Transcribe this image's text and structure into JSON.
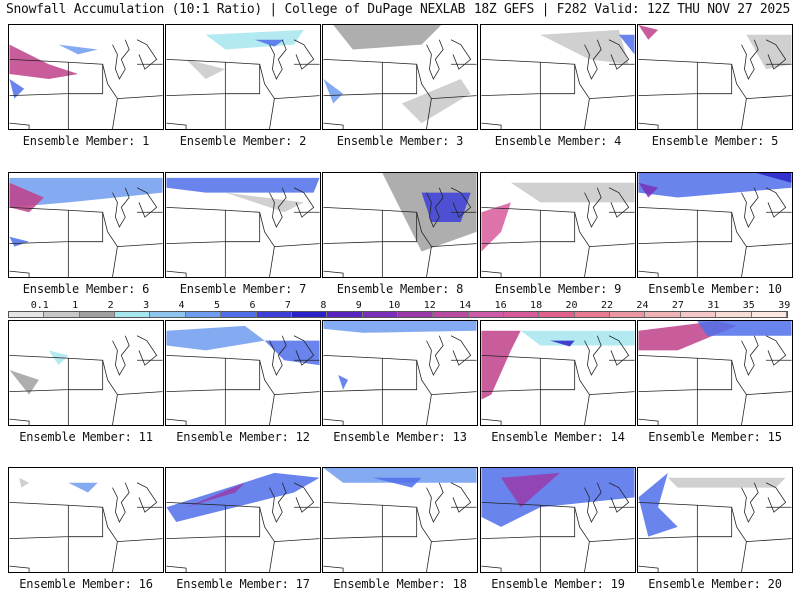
{
  "header": {
    "title": "Snowfall Accumulation (10:1 Ratio) | College of DuPage NEXLAB",
    "run_info": "18Z GEFS | F282 Valid: 12Z THU NOV 27 2025"
  },
  "scale": {
    "labels": [
      "0.1",
      "1",
      "2",
      "3",
      "4",
      "5",
      "6",
      "7",
      "8",
      "9",
      "10",
      "12",
      "14",
      "16",
      "18",
      "20",
      "22",
      "24",
      "27",
      "31",
      "35",
      "39"
    ],
    "colors": [
      "#e6e6e6",
      "#c8c8c8",
      "#a0a0a0",
      "#a6e6f0",
      "#8fc4ee",
      "#6e9cf0",
      "#4f6fea",
      "#3c40d8",
      "#2a22c8",
      "#5a24c0",
      "#7a30b8",
      "#9a3aaa",
      "#b84aa0",
      "#cc5aa8",
      "#d85a9a",
      "#e0608e",
      "#e67a90",
      "#eb98a4",
      "#f0b4b6",
      "#f4c8c8",
      "#f8dcd6",
      "#fbe8e0"
    ]
  },
  "panels": [
    {
      "caption": "Ensemble Member: 1"
    },
    {
      "caption": "Ensemble Member: 2"
    },
    {
      "caption": "Ensemble Member: 3"
    },
    {
      "caption": "Ensemble Member: 4"
    },
    {
      "caption": "Ensemble Member: 5"
    },
    {
      "caption": "Ensemble Member: 6"
    },
    {
      "caption": "Ensemble Member: 7"
    },
    {
      "caption": "Ensemble Member: 8"
    },
    {
      "caption": "Ensemble Member: 9"
    },
    {
      "caption": "Ensemble Member: 10"
    },
    {
      "caption": "Ensemble Member: 11"
    },
    {
      "caption": "Ensemble Member: 12"
    },
    {
      "caption": "Ensemble Member: 13"
    },
    {
      "caption": "Ensemble Member: 14"
    },
    {
      "caption": "Ensemble Member: 15"
    },
    {
      "caption": "Ensemble Member: 16"
    },
    {
      "caption": "Ensemble Member: 17"
    },
    {
      "caption": "Ensemble Member: 18"
    },
    {
      "caption": "Ensemble Member: 19"
    },
    {
      "caption": "Ensemble Member: 20"
    }
  ]
}
